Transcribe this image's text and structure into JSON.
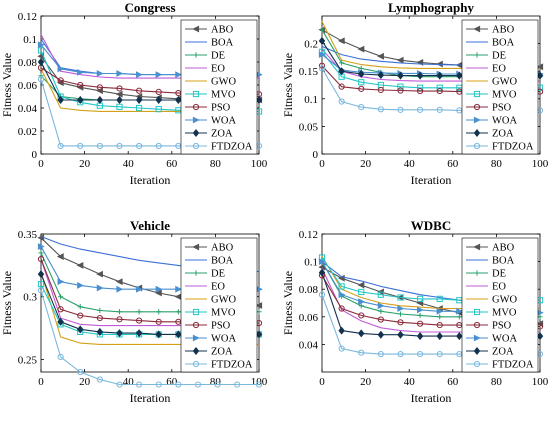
{
  "colors": {
    "ABO": "#555555",
    "BOA": "#3a6fd8",
    "DE": "#2aa06b",
    "EO": "#c25bd8",
    "GWO": "#d4a017",
    "MVO": "#22c6c6",
    "PSO": "#8b2a3a",
    "WOA": "#4a8fd0",
    "ZOA": "#13324e",
    "FTDZOA": "#7ab8de"
  },
  "markers": {
    "ABO": "left-triangle",
    "BOA": "none",
    "DE": "plus",
    "EO": "none",
    "GWO": "none",
    "MVO": "square",
    "PSO": "circle",
    "WOA": "right-triangle",
    "ZOA": "diamond",
    "FTDZOA": "circle"
  },
  "chart_data": [
    {
      "type": "line",
      "title": "Congress",
      "xlabel": "Iteration",
      "ylabel": "Fitness Value",
      "xlim": [
        0,
        100
      ],
      "ylim": [
        0,
        0.12
      ],
      "xticks": [
        "0",
        "20",
        "40",
        "60",
        "80",
        "100"
      ],
      "yticks": [
        "0",
        "0.02",
        "0.04",
        "0.06",
        "0.08",
        "0.1",
        "0.12"
      ],
      "legend_position": "top-right",
      "x": [
        0,
        9,
        18,
        27,
        36,
        45,
        54,
        63,
        72,
        81,
        90,
        100
      ],
      "series": [
        {
          "name": "ABO",
          "values": [
            0.085,
            0.062,
            0.058,
            0.055,
            0.052,
            0.05,
            0.049,
            0.048,
            0.047,
            0.047,
            0.047,
            0.047
          ]
        },
        {
          "name": "BOA",
          "values": [
            0.1,
            0.075,
            0.072,
            0.07,
            0.07,
            0.069,
            0.069,
            0.069,
            0.069,
            0.069,
            0.069,
            0.069
          ]
        },
        {
          "name": "DE",
          "values": [
            0.068,
            0.05,
            0.048,
            0.047,
            0.047,
            0.047,
            0.047,
            0.047,
            0.047,
            0.047,
            0.047,
            0.047
          ]
        },
        {
          "name": "EO",
          "values": [
            0.104,
            0.072,
            0.069,
            0.067,
            0.066,
            0.066,
            0.066,
            0.066,
            0.066,
            0.066,
            0.066,
            0.066
          ]
        },
        {
          "name": "GWO",
          "values": [
            0.074,
            0.04,
            0.038,
            0.037,
            0.037,
            0.037,
            0.037,
            0.037,
            0.037,
            0.037,
            0.037,
            0.037
          ]
        },
        {
          "name": "MVO",
          "values": [
            0.09,
            0.05,
            0.045,
            0.042,
            0.041,
            0.04,
            0.039,
            0.038,
            0.038,
            0.037,
            0.037,
            0.037
          ]
        },
        {
          "name": "PSO",
          "values": [
            0.075,
            0.064,
            0.06,
            0.058,
            0.057,
            0.055,
            0.054,
            0.053,
            0.053,
            0.052,
            0.052,
            0.052
          ]
        },
        {
          "name": "WOA",
          "values": [
            0.095,
            0.074,
            0.071,
            0.07,
            0.07,
            0.069,
            0.069,
            0.069,
            0.069,
            0.069,
            0.069,
            0.069
          ]
        },
        {
          "name": "ZOA",
          "values": [
            0.08,
            0.047,
            0.047,
            0.047,
            0.047,
            0.047,
            0.047,
            0.047,
            0.047,
            0.047,
            0.047,
            0.047
          ]
        },
        {
          "name": "FTDZOA",
          "values": [
            0.065,
            0.007,
            0.007,
            0.007,
            0.007,
            0.007,
            0.007,
            0.007,
            0.007,
            0.007,
            0.007,
            0.007
          ]
        }
      ]
    },
    {
      "type": "line",
      "title": "Lymphography",
      "xlabel": "Iteration",
      "ylabel": "Fitness Value",
      "xlim": [
        0,
        100
      ],
      "ylim": [
        0,
        0.25
      ],
      "xticks": [
        "0",
        "20",
        "40",
        "60",
        "80",
        "100"
      ],
      "yticks": [
        "0",
        "0.05",
        "0.1",
        "0.15",
        "0.2"
      ],
      "legend_position": "top-right",
      "x": [
        0,
        9,
        18,
        27,
        36,
        45,
        54,
        63,
        72,
        81,
        90,
        100
      ],
      "series": [
        {
          "name": "ABO",
          "values": [
            0.225,
            0.205,
            0.19,
            0.177,
            0.17,
            0.166,
            0.163,
            0.161,
            0.16,
            0.159,
            0.158,
            0.158
          ]
        },
        {
          "name": "BOA",
          "values": [
            0.195,
            0.18,
            0.172,
            0.168,
            0.165,
            0.163,
            0.162,
            0.161,
            0.16,
            0.16,
            0.159,
            0.159
          ]
        },
        {
          "name": "DE",
          "values": [
            0.225,
            0.165,
            0.155,
            0.148,
            0.142,
            0.14,
            0.14,
            0.14,
            0.14,
            0.14,
            0.14,
            0.14
          ]
        },
        {
          "name": "EO",
          "values": [
            0.19,
            0.15,
            0.14,
            0.135,
            0.133,
            0.132,
            0.132,
            0.132,
            0.132,
            0.132,
            0.132,
            0.132
          ]
        },
        {
          "name": "GWO",
          "values": [
            0.24,
            0.17,
            0.162,
            0.158,
            0.156,
            0.155,
            0.155,
            0.155,
            0.155,
            0.155,
            0.155,
            0.155
          ]
        },
        {
          "name": "MVO",
          "values": [
            0.185,
            0.14,
            0.13,
            0.125,
            0.122,
            0.12,
            0.12,
            0.12,
            0.12,
            0.12,
            0.12,
            0.12
          ]
        },
        {
          "name": "PSO",
          "values": [
            0.16,
            0.122,
            0.118,
            0.116,
            0.115,
            0.114,
            0.114,
            0.113,
            0.113,
            0.113,
            0.113,
            0.113
          ]
        },
        {
          "name": "WOA",
          "values": [
            0.18,
            0.152,
            0.148,
            0.147,
            0.146,
            0.146,
            0.145,
            0.145,
            0.145,
            0.145,
            0.145,
            0.145
          ]
        },
        {
          "name": "ZOA",
          "values": [
            0.205,
            0.15,
            0.145,
            0.143,
            0.142,
            0.142,
            0.142,
            0.142,
            0.142,
            0.142,
            0.142,
            0.142
          ]
        },
        {
          "name": "FTDZOA",
          "values": [
            0.155,
            0.095,
            0.085,
            0.081,
            0.08,
            0.08,
            0.08,
            0.079,
            0.079,
            0.079,
            0.079,
            0.079
          ]
        }
      ]
    },
    {
      "type": "line",
      "title": "Vehicle",
      "xlabel": "Iteration",
      "ylabel": "Fitness Value",
      "xlim": [
        0,
        100
      ],
      "ylim": [
        0.24,
        0.35
      ],
      "xticks": [
        "0",
        "20",
        "40",
        "60",
        "80",
        "100"
      ],
      "yticks": [
        "0.25",
        "0.3",
        "0.35"
      ],
      "legend_position": "top-right",
      "x": [
        0,
        9,
        18,
        27,
        36,
        45,
        54,
        63,
        72,
        81,
        90,
        100
      ],
      "series": [
        {
          "name": "ABO",
          "values": [
            0.347,
            0.332,
            0.325,
            0.318,
            0.312,
            0.307,
            0.303,
            0.3,
            0.297,
            0.295,
            0.294,
            0.293
          ]
        },
        {
          "name": "BOA",
          "values": [
            0.348,
            0.342,
            0.338,
            0.335,
            0.332,
            0.329,
            0.327,
            0.325,
            0.323,
            0.322,
            0.321,
            0.32
          ]
        },
        {
          "name": "DE",
          "values": [
            0.335,
            0.3,
            0.292,
            0.289,
            0.288,
            0.288,
            0.288,
            0.288,
            0.288,
            0.288,
            0.288,
            0.288
          ]
        },
        {
          "name": "EO",
          "values": [
            0.33,
            0.283,
            0.278,
            0.277,
            0.277,
            0.277,
            0.277,
            0.277,
            0.277,
            0.277,
            0.277,
            0.277
          ]
        },
        {
          "name": "GWO",
          "values": [
            0.32,
            0.268,
            0.263,
            0.262,
            0.262,
            0.262,
            0.262,
            0.262,
            0.262,
            0.262,
            0.262,
            0.262
          ]
        },
        {
          "name": "MVO",
          "values": [
            0.31,
            0.278,
            0.272,
            0.27,
            0.27,
            0.27,
            0.27,
            0.27,
            0.27,
            0.27,
            0.27,
            0.27
          ]
        },
        {
          "name": "PSO",
          "values": [
            0.33,
            0.29,
            0.285,
            0.283,
            0.282,
            0.281,
            0.28,
            0.28,
            0.279,
            0.279,
            0.279,
            0.279
          ]
        },
        {
          "name": "WOA",
          "values": [
            0.34,
            0.312,
            0.309,
            0.307,
            0.306,
            0.306,
            0.306,
            0.306,
            0.306,
            0.306,
            0.306,
            0.306
          ]
        },
        {
          "name": "ZOA",
          "values": [
            0.318,
            0.28,
            0.274,
            0.272,
            0.271,
            0.271,
            0.27,
            0.27,
            0.27,
            0.27,
            0.27,
            0.27
          ]
        },
        {
          "name": "FTDZOA",
          "values": [
            0.305,
            0.252,
            0.24,
            0.234,
            0.23,
            0.23,
            0.23,
            0.23,
            0.23,
            0.23,
            0.23,
            0.23
          ]
        }
      ]
    },
    {
      "type": "line",
      "title": "WDBC",
      "xlabel": "Iteration",
      "ylabel": "Fitness Value",
      "xlim": [
        0,
        100
      ],
      "ylim": [
        0.02,
        0.12
      ],
      "xticks": [
        "0",
        "20",
        "40",
        "60",
        "80",
        "100"
      ],
      "yticks": [
        "0.04",
        "0.06",
        "0.08",
        "0.1",
        "0.12"
      ],
      "legend_position": "top-right",
      "x": [
        0,
        9,
        18,
        27,
        36,
        45,
        54,
        63,
        72,
        81,
        90,
        100
      ],
      "series": [
        {
          "name": "ABO",
          "values": [
            0.096,
            0.088,
            0.083,
            0.078,
            0.074,
            0.07,
            0.066,
            0.063,
            0.06,
            0.058,
            0.056,
            0.055
          ]
        },
        {
          "name": "BOA",
          "values": [
            0.1,
            0.089,
            0.086,
            0.082,
            0.079,
            0.076,
            0.074,
            0.072,
            0.07,
            0.069,
            0.067,
            0.066
          ]
        },
        {
          "name": "DE",
          "values": [
            0.1,
            0.075,
            0.068,
            0.064,
            0.062,
            0.061,
            0.06,
            0.06,
            0.06,
            0.06,
            0.06,
            0.06
          ]
        },
        {
          "name": "EO",
          "values": [
            0.095,
            0.065,
            0.057,
            0.052,
            0.05,
            0.049,
            0.049,
            0.049,
            0.049,
            0.049,
            0.049,
            0.049
          ]
        },
        {
          "name": "GWO",
          "values": [
            0.104,
            0.08,
            0.074,
            0.07,
            0.068,
            0.067,
            0.066,
            0.066,
            0.066,
            0.066,
            0.066,
            0.066
          ]
        },
        {
          "name": "MVO",
          "values": [
            0.103,
            0.082,
            0.078,
            0.076,
            0.074,
            0.073,
            0.073,
            0.072,
            0.072,
            0.072,
            0.072,
            0.072
          ]
        },
        {
          "name": "PSO",
          "values": [
            0.09,
            0.066,
            0.061,
            0.058,
            0.056,
            0.055,
            0.054,
            0.054,
            0.053,
            0.053,
            0.053,
            0.053
          ]
        },
        {
          "name": "WOA",
          "values": [
            0.1,
            0.076,
            0.071,
            0.068,
            0.066,
            0.065,
            0.064,
            0.064,
            0.063,
            0.063,
            0.063,
            0.063
          ]
        },
        {
          "name": "ZOA",
          "values": [
            0.092,
            0.05,
            0.048,
            0.047,
            0.047,
            0.046,
            0.046,
            0.046,
            0.046,
            0.046,
            0.046,
            0.046
          ]
        },
        {
          "name": "FTDZOA",
          "values": [
            0.076,
            0.037,
            0.034,
            0.033,
            0.033,
            0.033,
            0.033,
            0.033,
            0.033,
            0.033,
            0.033,
            0.033
          ]
        }
      ]
    }
  ]
}
